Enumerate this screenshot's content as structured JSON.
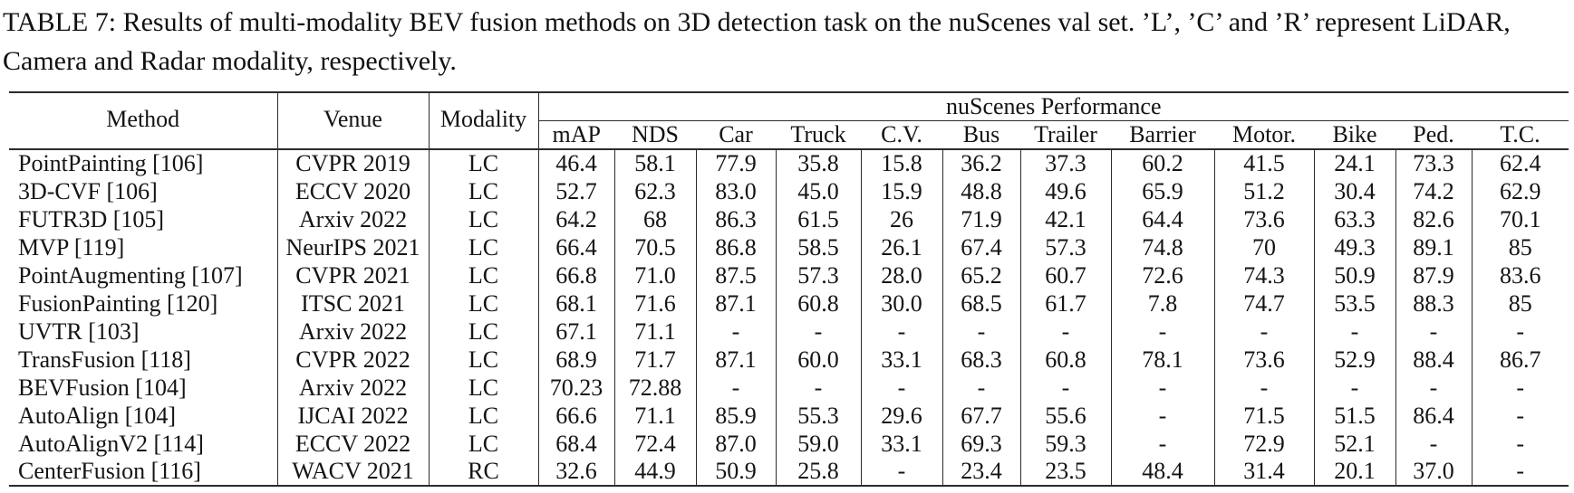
{
  "caption": "TABLE 7: Results of multi-modality BEV fusion methods on 3D detection task on the nuScenes val set. ’L’, ’C’ and ’R’ represent LiDAR, Camera and Radar modality, respectively.",
  "table": {
    "group_header": "nuScenes Performance",
    "columns": {
      "method": "Method",
      "venue": "Venue",
      "modality": "Modality"
    },
    "perf_columns": [
      "mAP",
      "NDS",
      "Car",
      "Truck",
      "C.V.",
      "Bus",
      "Trailer",
      "Barrier",
      "Motor.",
      "Bike",
      "Ped.",
      "T.C."
    ],
    "rows": [
      {
        "method": "PointPainting [106]",
        "venue": "CVPR 2019",
        "modality": "LC",
        "values": [
          "46.4",
          "58.1",
          "77.9",
          "35.8",
          "15.8",
          "36.2",
          "37.3",
          "60.2",
          "41.5",
          "24.1",
          "73.3",
          "62.4"
        ]
      },
      {
        "method": "3D-CVF [106]",
        "venue": "ECCV 2020",
        "modality": "LC",
        "values": [
          "52.7",
          "62.3",
          "83.0",
          "45.0",
          "15.9",
          "48.8",
          "49.6",
          "65.9",
          "51.2",
          "30.4",
          "74.2",
          "62.9"
        ]
      },
      {
        "method": "FUTR3D [105]",
        "venue": "Arxiv 2022",
        "modality": "LC",
        "values": [
          "64.2",
          "68",
          "86.3",
          "61.5",
          "26",
          "71.9",
          "42.1",
          "64.4",
          "73.6",
          "63.3",
          "82.6",
          "70.1"
        ]
      },
      {
        "method": "MVP [119]",
        "venue": "NeurIPS 2021",
        "modality": "LC",
        "values": [
          "66.4",
          "70.5",
          "86.8",
          "58.5",
          "26.1",
          "67.4",
          "57.3",
          "74.8",
          "70",
          "49.3",
          "89.1",
          "85"
        ]
      },
      {
        "method": "PointAugmenting [107]",
        "venue": "CVPR 2021",
        "modality": "LC",
        "values": [
          "66.8",
          "71.0",
          "87.5",
          "57.3",
          "28.0",
          "65.2",
          "60.7",
          "72.6",
          "74.3",
          "50.9",
          "87.9",
          "83.6"
        ]
      },
      {
        "method": "FusionPainting [120]",
        "venue": "ITSC 2021",
        "modality": "LC",
        "values": [
          "68.1",
          "71.6",
          "87.1",
          "60.8",
          "30.0",
          "68.5",
          "61.7",
          "7.8",
          "74.7",
          "53.5",
          "88.3",
          "85"
        ]
      },
      {
        "method": "UVTR [103]",
        "venue": "Arxiv 2022",
        "modality": "LC",
        "values": [
          "67.1",
          "71.1",
          "-",
          "-",
          "-",
          "-",
          "-",
          "-",
          "-",
          "-",
          "-",
          "-"
        ]
      },
      {
        "method": "TransFusion [118]",
        "venue": "CVPR 2022",
        "modality": "LC",
        "values": [
          "68.9",
          "71.7",
          "87.1",
          "60.0",
          "33.1",
          "68.3",
          "60.8",
          "78.1",
          "73.6",
          "52.9",
          "88.4",
          "86.7"
        ]
      },
      {
        "method": "BEVFusion [104]",
        "venue": "Arxiv 2022",
        "modality": "LC",
        "values": [
          "70.23",
          "72.88",
          "-",
          "-",
          "-",
          "-",
          "-",
          "-",
          "-",
          "-",
          "-",
          "-"
        ]
      },
      {
        "method": "AutoAlign [104]",
        "venue": "IJCAI 2022",
        "modality": "LC",
        "values": [
          "66.6",
          "71.1",
          "85.9",
          "55.3",
          "29.6",
          "67.7",
          "55.6",
          "-",
          "71.5",
          "51.5",
          "86.4",
          "-"
        ]
      },
      {
        "method": "AutoAlignV2 [114]",
        "venue": "ECCV 2022",
        "modality": "LC",
        "values": [
          "68.4",
          "72.4",
          "87.0",
          "59.0",
          "33.1",
          "69.3",
          "59.3",
          "-",
          "72.9",
          "52.1",
          "-",
          "-"
        ]
      },
      {
        "method": "CenterFusion [116]",
        "venue": "WACV 2021",
        "modality": "RC",
        "values": [
          "32.6",
          "44.9",
          "50.9",
          "25.8",
          "-",
          "23.4",
          "23.5",
          "48.4",
          "31.4",
          "20.1",
          "37.0",
          "-"
        ]
      }
    ]
  },
  "colors": {
    "background": "#ffffff",
    "text": "#141414",
    "border": "#2b2b2b"
  }
}
